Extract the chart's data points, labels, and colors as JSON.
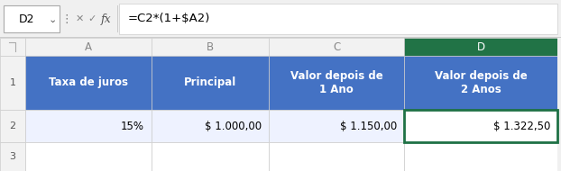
{
  "formula_bar_cell": "D2",
  "formula_bar_formula": "=C2*(1+$A2)",
  "col_letters": [
    "A",
    "B",
    "C",
    "D"
  ],
  "headers": [
    "Taxa de juros",
    "Principal",
    "Valor depois de\n1 Ano",
    "Valor depois de\n2 Anos"
  ],
  "data_row": [
    "15%",
    "$ 1.000,00",
    "$ 1.150,00",
    "$ 1.322,50"
  ],
  "header_bg": "#4472C4",
  "header_fg": "#FFFFFF",
  "selected_col_header_bg": "#217346",
  "selected_col_header_fg": "#FFFFFF",
  "selected_cell_border": "#1E7145",
  "col_header_bg": "#F2F2F2",
  "col_header_fg": "#888888",
  "row_header_bg": "#F2F2F2",
  "row_header_fg": "#555555",
  "selected_col_idx": 3,
  "fig_width": 6.22,
  "fig_height": 1.9,
  "row2_bg": "#EEF2FF",
  "row2_selected_bg": "#DDEEFF"
}
